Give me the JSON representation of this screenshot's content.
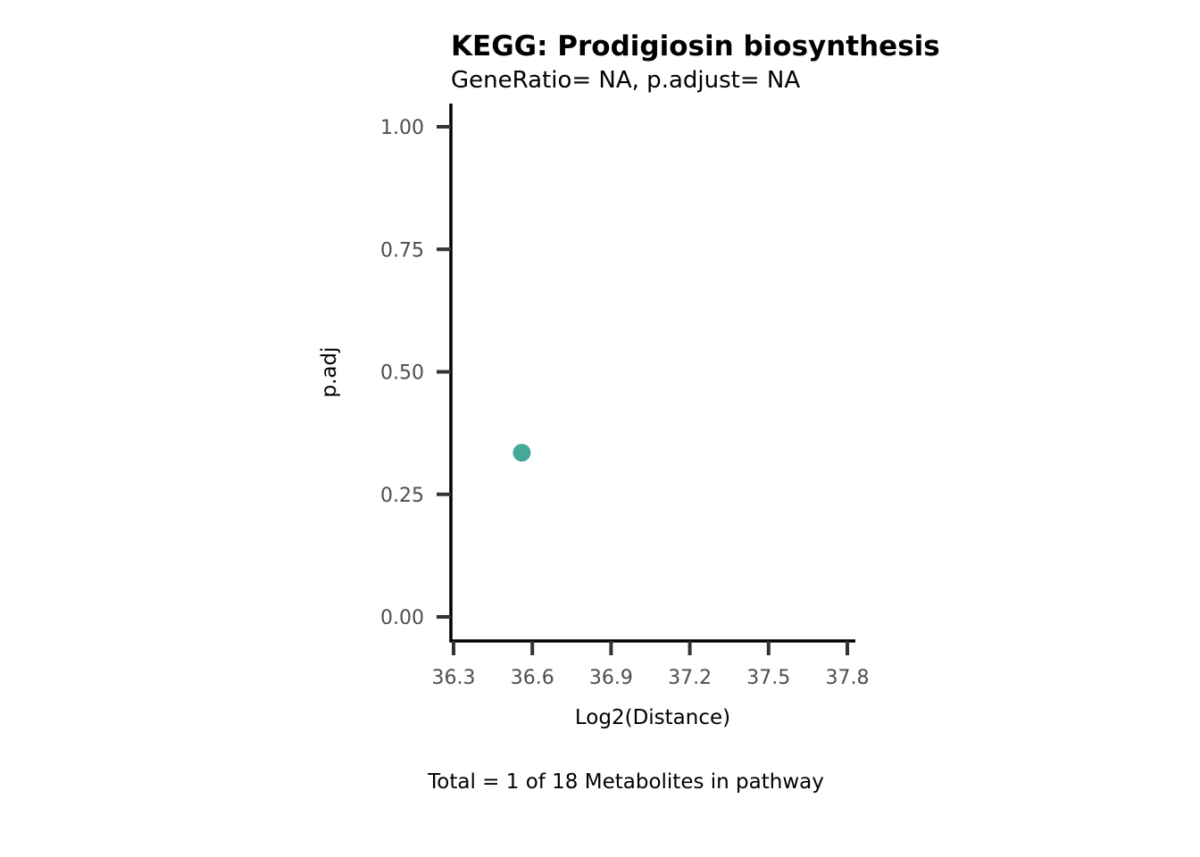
{
  "chart_data": {
    "type": "scatter",
    "title": "KEGG: Prodigiosin biosynthesis",
    "subtitle": "GeneRatio= NA, p.adjust= NA",
    "xlabel": "Log2(Distance)",
    "ylabel": "p.adj",
    "caption": "Total = 1 of 18 Metabolites in pathway",
    "xlim": [
      36.3,
      37.8
    ],
    "ylim": [
      0,
      1
    ],
    "x_ticks": [
      36.3,
      36.6,
      36.9,
      37.2,
      37.5,
      37.8
    ],
    "x_tick_labels": [
      "36.3",
      "36.6",
      "36.9",
      "37.2",
      "37.5",
      "37.8"
    ],
    "y_ticks": [
      0,
      0.25,
      0.5,
      0.75,
      1.0
    ],
    "y_tick_labels": [
      "0.00",
      "0.25",
      "0.50",
      "0.75",
      "1.00"
    ],
    "grid": false,
    "legend": "none",
    "series": [
      {
        "points": [
          {
            "x": 36.56,
            "y": 0.335
          }
        ],
        "color": "#45A89A"
      }
    ],
    "axis_color": "#000000",
    "tick_color": "#333333",
    "tick_label_color": "#4D4D4D"
  }
}
